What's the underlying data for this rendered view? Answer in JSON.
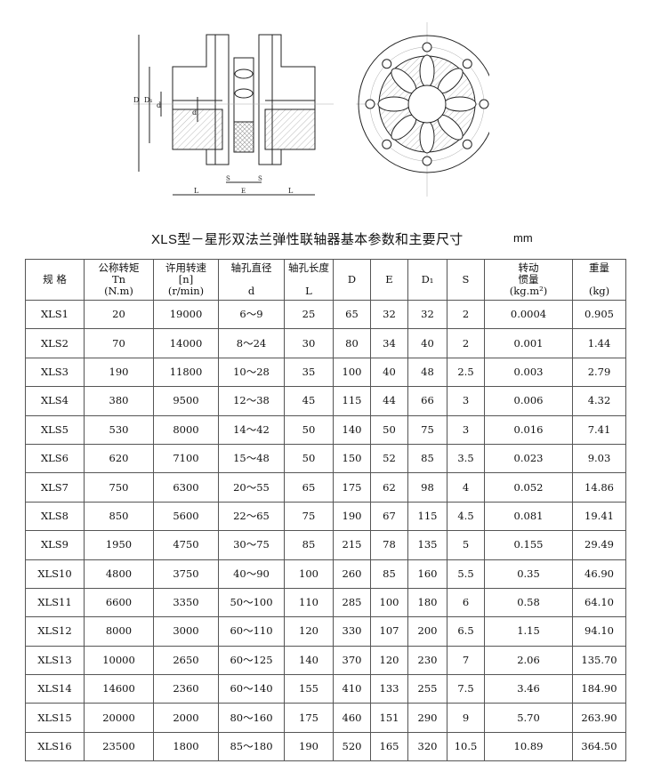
{
  "title": "XLS型－星形双法兰弹性联轴器基本参数和主要尺寸",
  "unit": "mm",
  "drawing": {
    "labels": {
      "D": "D",
      "D1": "D₁",
      "d": "d",
      "L": "L",
      "S": "S",
      "E": "E"
    }
  },
  "table": {
    "headers": [
      {
        "lines": [
          "规 格"
        ]
      },
      {
        "lines": [
          "公称转矩",
          "Tn",
          "(N.m)"
        ]
      },
      {
        "lines": [
          "许用转速",
          "[n]",
          "(r/min)"
        ]
      },
      {
        "lines": [
          "轴孔直径",
          "",
          "d"
        ]
      },
      {
        "lines": [
          "轴孔长度",
          "",
          "L"
        ]
      },
      {
        "lines": [
          "D"
        ]
      },
      {
        "lines": [
          "E"
        ]
      },
      {
        "lines": [
          "D₁"
        ]
      },
      {
        "lines": [
          "S"
        ]
      },
      {
        "lines": [
          "转动",
          "惯量",
          "(kg.m²)"
        ]
      },
      {
        "lines": [
          "重量",
          "",
          "(kg)"
        ]
      }
    ],
    "rows": [
      [
        "XLS1",
        "20",
        "19000",
        "6～9",
        "25",
        "65",
        "32",
        "32",
        "2",
        "0.0004",
        "0.905"
      ],
      [
        "XLS2",
        "70",
        "14000",
        "8～24",
        "30",
        "80",
        "34",
        "40",
        "2",
        "0.001",
        "1.44"
      ],
      [
        "XLS3",
        "190",
        "11800",
        "10～28",
        "35",
        "100",
        "40",
        "48",
        "2.5",
        "0.003",
        "2.79"
      ],
      [
        "XLS4",
        "380",
        "9500",
        "12～38",
        "45",
        "115",
        "44",
        "66",
        "3",
        "0.006",
        "4.32"
      ],
      [
        "XLS5",
        "530",
        "8000",
        "14～42",
        "50",
        "140",
        "50",
        "75",
        "3",
        "0.016",
        "7.41"
      ],
      [
        "XLS6",
        "620",
        "7100",
        "15～48",
        "50",
        "150",
        "52",
        "85",
        "3.5",
        "0.023",
        "9.03"
      ],
      [
        "XLS7",
        "750",
        "6300",
        "20～55",
        "65",
        "175",
        "62",
        "98",
        "4",
        "0.052",
        "14.86"
      ],
      [
        "XLS8",
        "850",
        "5600",
        "22～65",
        "75",
        "190",
        "67",
        "115",
        "4.5",
        "0.081",
        "19.41"
      ],
      [
        "XLS9",
        "1950",
        "4750",
        "30～75",
        "85",
        "215",
        "78",
        "135",
        "5",
        "0.155",
        "29.49"
      ],
      [
        "XLS10",
        "4800",
        "3750",
        "40～90",
        "100",
        "260",
        "85",
        "160",
        "5.5",
        "0.35",
        "46.90"
      ],
      [
        "XLS11",
        "6600",
        "3350",
        "50～100",
        "110",
        "285",
        "100",
        "180",
        "6",
        "0.58",
        "64.10"
      ],
      [
        "XLS12",
        "8000",
        "3000",
        "60～110",
        "120",
        "330",
        "107",
        "200",
        "6.5",
        "1.15",
        "94.10"
      ],
      [
        "XLS13",
        "10000",
        "2650",
        "60～125",
        "140",
        "370",
        "120",
        "230",
        "7",
        "2.06",
        "135.70"
      ],
      [
        "XLS14",
        "14600",
        "2360",
        "60～140",
        "155",
        "410",
        "133",
        "255",
        "7.5",
        "3.46",
        "184.90"
      ],
      [
        "XLS15",
        "20000",
        "2000",
        "80～160",
        "175",
        "460",
        "151",
        "290",
        "9",
        "5.70",
        "263.90"
      ],
      [
        "XLS16",
        "23500",
        "1800",
        "85～180",
        "190",
        "520",
        "165",
        "320",
        "10.5",
        "10.89",
        "364.50"
      ]
    ]
  }
}
